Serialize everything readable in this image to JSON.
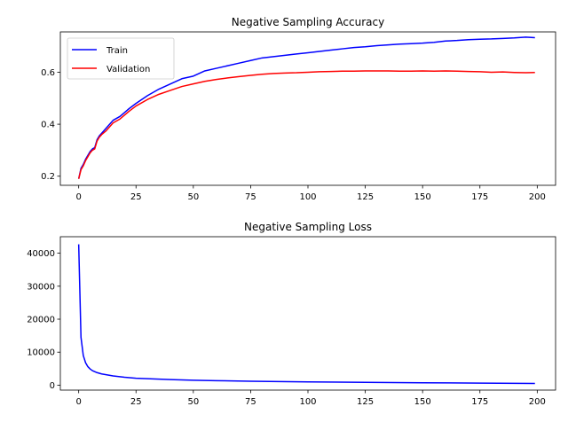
{
  "chart_data": [
    {
      "type": "line",
      "title": "Negative Sampling Accuracy",
      "xlabel": "",
      "ylabel": "",
      "xlim": [
        -8,
        208
      ],
      "ylim": [
        0.165,
        0.755
      ],
      "xticks": [
        0,
        25,
        50,
        75,
        100,
        125,
        150,
        175,
        200
      ],
      "yticks": [
        0.2,
        0.4,
        0.6
      ],
      "ytick_labels": [
        "0.2",
        "0.4",
        "0.6"
      ],
      "grid": false,
      "legend": "upper left",
      "series": [
        {
          "name": "Train",
          "color": "#0000ff",
          "x": [
            0,
            1,
            2,
            3,
            4,
            5,
            6,
            7,
            8,
            9,
            10,
            12,
            15,
            18,
            20,
            22,
            25,
            30,
            35,
            40,
            45,
            50,
            55,
            60,
            65,
            70,
            75,
            80,
            85,
            90,
            95,
            100,
            105,
            110,
            115,
            120,
            125,
            130,
            135,
            140,
            145,
            150,
            155,
            160,
            165,
            170,
            175,
            180,
            185,
            190,
            195,
            199
          ],
          "y": [
            0.19,
            0.23,
            0.245,
            0.265,
            0.28,
            0.295,
            0.305,
            0.31,
            0.34,
            0.355,
            0.365,
            0.385,
            0.415,
            0.43,
            0.445,
            0.46,
            0.48,
            0.51,
            0.535,
            0.555,
            0.575,
            0.585,
            0.605,
            0.615,
            0.625,
            0.635,
            0.645,
            0.655,
            0.66,
            0.665,
            0.67,
            0.675,
            0.68,
            0.685,
            0.69,
            0.695,
            0.698,
            0.702,
            0.705,
            0.708,
            0.71,
            0.712,
            0.715,
            0.72,
            0.722,
            0.725,
            0.727,
            0.728,
            0.73,
            0.732,
            0.735,
            0.733
          ]
        },
        {
          "name": "Validation",
          "color": "#ff0000",
          "x": [
            0,
            1,
            2,
            3,
            4,
            5,
            6,
            7,
            8,
            9,
            10,
            12,
            15,
            18,
            20,
            22,
            25,
            30,
            35,
            40,
            45,
            50,
            55,
            60,
            65,
            70,
            75,
            80,
            85,
            90,
            95,
            100,
            105,
            110,
            115,
            120,
            125,
            130,
            135,
            140,
            145,
            150,
            155,
            160,
            165,
            170,
            175,
            180,
            185,
            190,
            195,
            199
          ],
          "y": [
            0.19,
            0.225,
            0.24,
            0.26,
            0.275,
            0.29,
            0.3,
            0.305,
            0.335,
            0.35,
            0.36,
            0.375,
            0.405,
            0.42,
            0.435,
            0.45,
            0.47,
            0.495,
            0.515,
            0.53,
            0.545,
            0.555,
            0.565,
            0.572,
            0.578,
            0.583,
            0.588,
            0.592,
            0.595,
            0.597,
            0.598,
            0.6,
            0.602,
            0.603,
            0.604,
            0.604,
            0.605,
            0.605,
            0.605,
            0.604,
            0.604,
            0.605,
            0.604,
            0.605,
            0.604,
            0.603,
            0.602,
            0.6,
            0.601,
            0.599,
            0.598,
            0.599
          ]
        }
      ]
    },
    {
      "type": "line",
      "title": "Negative Sampling Loss",
      "xlabel": "",
      "ylabel": "",
      "xlim": [
        -8,
        208
      ],
      "ylim": [
        -1500,
        45000
      ],
      "xticks": [
        0,
        25,
        50,
        75,
        100,
        125,
        150,
        175,
        200
      ],
      "yticks": [
        0,
        10000,
        20000,
        30000,
        40000
      ],
      "ytick_labels": [
        "0",
        "10000",
        "20000",
        "30000",
        "40000"
      ],
      "grid": false,
      "legend": "none",
      "series": [
        {
          "color": "#0000ff",
          "x": [
            0,
            1,
            2,
            3,
            4,
            5,
            6,
            8,
            10,
            15,
            20,
            25,
            30,
            40,
            50,
            60,
            75,
            100,
            125,
            150,
            175,
            199
          ],
          "y": [
            42700,
            14500,
            9000,
            6800,
            5600,
            4900,
            4400,
            3800,
            3400,
            2800,
            2400,
            2100,
            1950,
            1700,
            1500,
            1350,
            1200,
            1000,
            850,
            720,
            620,
            500
          ]
        }
      ]
    }
  ]
}
